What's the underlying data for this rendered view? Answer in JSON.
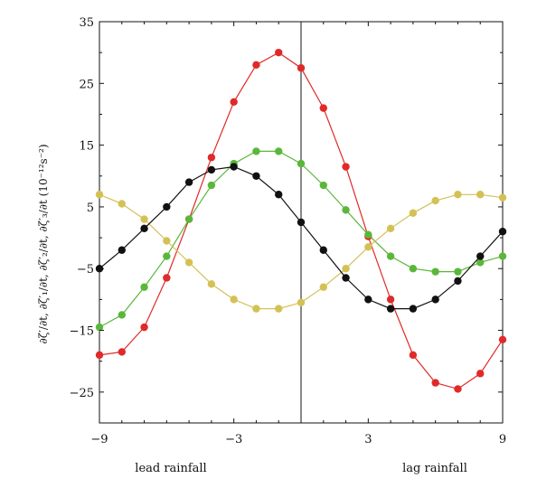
{
  "chart_data": {
    "type": "line",
    "title": "",
    "xlabel": "",
    "ylabel": "∂ζ′/∂t, ∂ζ′₁/∂t, ∂ζ′₂/∂t, ∂ζ′₃/∂t (10⁻¹²s⁻²)",
    "xlim": [
      -9,
      9
    ],
    "ylim": [
      -30,
      35
    ],
    "xticks": [
      -9,
      -3,
      3,
      9
    ],
    "yticks": [
      35,
      25,
      15,
      5,
      -5,
      -15,
      -25
    ],
    "x_tick_labels": [
      "−9",
      "−3",
      "3",
      "9"
    ],
    "y_tick_labels": [
      "35",
      "25",
      "15",
      "5",
      "−5",
      "−15",
      "−25"
    ],
    "vline_x": 0,
    "annotations": {
      "left": "lead  rainfall",
      "right": "lag  rainfall"
    },
    "x": [
      -9,
      -8,
      -7,
      -6,
      -5,
      -4,
      -3,
      -2,
      -1,
      0,
      1,
      2,
      3,
      4,
      5,
      6,
      7,
      8,
      9
    ],
    "series": [
      {
        "color": "#e02a2a",
        "values": [
          -19,
          -18.5,
          -14.5,
          -6.5,
          3,
          13,
          22,
          28,
          30,
          27.5,
          21,
          11.5,
          0.2,
          -10,
          -19,
          -23.5,
          -24.5,
          -22,
          -16.5
        ]
      },
      {
        "color": "#5ab73a",
        "values": [
          -14.5,
          -12.5,
          -8,
          -3,
          3,
          8.5,
          12,
          14,
          14,
          12,
          8.5,
          4.5,
          0.5,
          -3,
          -5,
          -5.5,
          -5.5,
          -4,
          -3
        ]
      },
      {
        "color": "#d4c155",
        "values": [
          7,
          5.5,
          3,
          -0.5,
          -4,
          -7.5,
          -10,
          -11.5,
          -11.5,
          -10.5,
          -8,
          -5,
          -1.5,
          1.5,
          4,
          6,
          7,
          7,
          6.5
        ]
      },
      {
        "color": "#111111",
        "values": [
          -5,
          -2,
          1.5,
          5,
          9,
          11,
          11.5,
          10,
          7,
          2.5,
          -2,
          -6.5,
          -10,
          -11.5,
          -11.5,
          -10,
          -7,
          -3,
          1
        ]
      }
    ]
  }
}
